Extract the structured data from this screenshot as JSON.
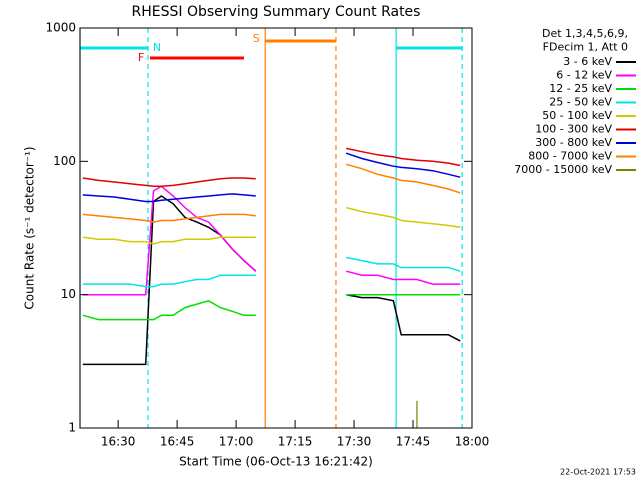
{
  "chart_data": {
    "type": "line",
    "title": "RHESSI Observing Summary Count Rates",
    "x_label": "Start Time (06-Oct-13 16:21:42)",
    "y_label": "Count Rate (s⁻¹ detector⁻¹)",
    "legend_header": [
      "Det 1,3,4,5,6,9,",
      "FDecim 1, Att 0"
    ],
    "timestamp": "22-Oct-2021 17:53",
    "ylog": true,
    "ylim": [
      1,
      1000
    ],
    "yticks": [
      1,
      10,
      100,
      1000
    ],
    "xlim": [
      980.3,
      1080
    ],
    "xticks": [
      {
        "value": 990,
        "label": "16:30"
      },
      {
        "value": 1005,
        "label": "16:45"
      },
      {
        "value": 1020,
        "label": "17:00"
      },
      {
        "value": 1035,
        "label": "17:15"
      },
      {
        "value": 1050,
        "label": "17:30"
      },
      {
        "value": 1065,
        "label": "17:45"
      },
      {
        "value": 1080,
        "label": "18:00"
      }
    ],
    "intervals": [
      {
        "label": "N",
        "color": "#00e5e5",
        "start": 980.3,
        "end": 997.6,
        "boundary_lines": true,
        "show_label": true
      },
      {
        "label": "F",
        "color": "#ff0000",
        "start": 998.1,
        "end": 1022.0,
        "boundary_lines": false,
        "show_label": true
      },
      {
        "label": "S",
        "color": "#ff8000",
        "start": 1027.4,
        "end": 1045.4,
        "boundary_lines": true,
        "show_label": true
      },
      {
        "label": "N",
        "color": "#00e5e5",
        "start": 1060.7,
        "end": 1077.5,
        "boundary_lines": true,
        "show_label": false
      }
    ],
    "x": [
      981,
      985,
      989,
      993,
      997,
      999,
      1001,
      1004,
      1007,
      1010,
      1013,
      1016,
      1019,
      1022,
      1025,
      1036,
      1048,
      1052,
      1056,
      1060,
      1062,
      1066,
      1070,
      1074,
      1077
    ],
    "series": [
      {
        "name": "3 - 6 keV",
        "color": "#000000",
        "values": [
          3,
          3,
          3,
          3,
          3,
          50,
          55,
          48,
          38,
          35,
          32,
          28,
          22,
          18,
          15,
          null,
          10,
          9.5,
          9.5,
          9,
          5,
          5,
          5,
          5,
          4.5
        ]
      },
      {
        "name": "6 - 12 keV",
        "color": "#ff00ff",
        "values": [
          10,
          10,
          10,
          10,
          10,
          60,
          65,
          55,
          45,
          38,
          35,
          28,
          22,
          18,
          15,
          null,
          15,
          14,
          14,
          13,
          13,
          13,
          12,
          12,
          12
        ]
      },
      {
        "name": "12 - 25 keV",
        "color": "#00e000",
        "values": [
          7,
          6.5,
          6.5,
          6.5,
          6.5,
          6.5,
          7,
          7,
          8,
          8.5,
          9,
          8,
          7.5,
          7,
          7,
          null,
          10,
          10,
          10,
          10,
          10,
          10,
          10,
          10,
          10
        ]
      },
      {
        "name": "25 - 50 keV",
        "color": "#00e5e5",
        "values": [
          12,
          12,
          12,
          12,
          11.5,
          11.5,
          12,
          12,
          12.5,
          13,
          13,
          14,
          14,
          14,
          14,
          null,
          19,
          18,
          17,
          17,
          16,
          16,
          16,
          16,
          15
        ]
      },
      {
        "name": "50 - 100 keV",
        "color": "#d4c800",
        "values": [
          27,
          26,
          26,
          25,
          25,
          24,
          25,
          25,
          26,
          26,
          26,
          27,
          27,
          27,
          27,
          null,
          45,
          42,
          40,
          38,
          36,
          35,
          34,
          33,
          32
        ]
      },
      {
        "name": "100 - 300 keV",
        "color": "#e00000",
        "values": [
          75,
          72,
          70,
          68,
          66,
          65,
          65,
          66,
          68,
          70,
          72,
          74,
          75,
          75,
          74,
          null,
          125,
          118,
          112,
          108,
          105,
          102,
          100,
          97,
          93
        ]
      },
      {
        "name": "300 - 800 keV",
        "color": "#0000e0",
        "values": [
          56,
          55,
          54,
          52,
          50,
          50,
          51,
          52,
          53,
          54,
          55,
          56,
          57,
          56,
          55,
          null,
          115,
          105,
          98,
          92,
          90,
          88,
          85,
          80,
          76
        ]
      },
      {
        "name": "800 - 7000 keV",
        "color": "#ff8000",
        "values": [
          40,
          39,
          38,
          37,
          36,
          35,
          36,
          36,
          37,
          38,
          39,
          40,
          40,
          40,
          39,
          null,
          95,
          88,
          80,
          75,
          72,
          70,
          66,
          62,
          58
        ]
      },
      {
        "name": "7000 - 15000 keV",
        "color": "#808000",
        "values": [
          null,
          null,
          null,
          null,
          null,
          null,
          null,
          null,
          null,
          null,
          null,
          null,
          null,
          null,
          null,
          null,
          null,
          null,
          null,
          null,
          null,
          1.6,
          null,
          null,
          null
        ]
      }
    ]
  }
}
